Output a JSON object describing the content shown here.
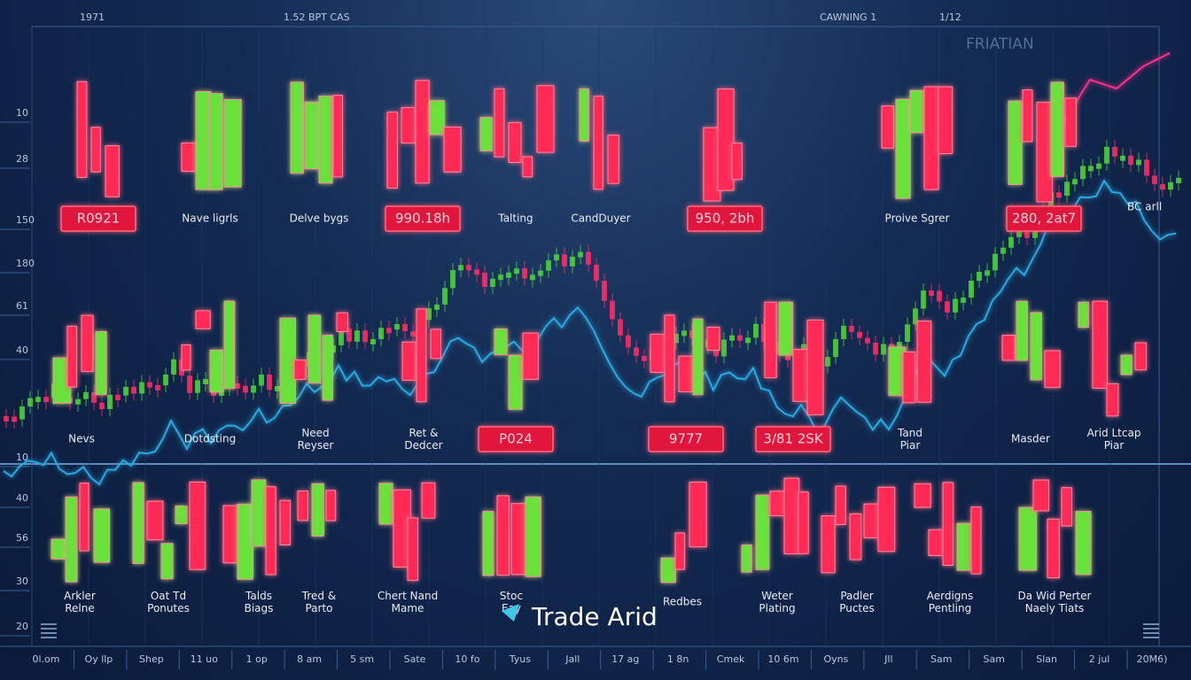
{
  "header": {
    "left": [
      "1971",
      "1.52 BPT CAS"
    ],
    "right": [
      "CAWNING 1",
      "1/12"
    ],
    "corner": "FRIATIAN"
  },
  "left_axis": [
    "10",
    "28",
    "150",
    "180",
    "61",
    "40",
    "10",
    "40",
    "56",
    "30",
    "20"
  ],
  "side_label": "BC arll",
  "rows": [
    {
      "items": [
        {
          "label": "R0921",
          "boxed": true
        },
        {
          "label": "Nave ligrls",
          "boxed": false
        },
        {
          "label": "Delve bygs",
          "boxed": false
        },
        {
          "label": "990.18h",
          "boxed": true
        },
        {
          "label": "Talting",
          "boxed": false
        },
        {
          "label": "CandDuyer",
          "boxed": false
        },
        {
          "label": "950, 2bh",
          "boxed": true
        },
        {
          "label": "Proive Sgrer",
          "boxed": false
        },
        {
          "label": "280, 2at7",
          "boxed": true
        }
      ]
    },
    {
      "items": [
        {
          "label": "Nevs",
          "boxed": false
        },
        {
          "label": "Dotdsting",
          "boxed": false
        },
        {
          "label": "Need Reyser",
          "boxed": false
        },
        {
          "label": "Ret & Dedcer",
          "boxed": false
        },
        {
          "label": "P024",
          "boxed": true
        },
        {
          "label": "9777",
          "boxed": true
        },
        {
          "label": "3/81 2SK",
          "boxed": true
        },
        {
          "label": "Tand Piar",
          "boxed": false
        },
        {
          "label": "Masder",
          "boxed": false
        },
        {
          "label": "Arid Ltcap Piar",
          "boxed": false
        }
      ]
    },
    {
      "items": [
        {
          "label": "Arkler Relne",
          "boxed": false
        },
        {
          "label": "Oat Td Ponutes",
          "boxed": false
        },
        {
          "label": "Talds Biags",
          "boxed": false
        },
        {
          "label": "Tred & Parto",
          "boxed": false
        },
        {
          "label": "Chert Nand Mame",
          "boxed": false
        },
        {
          "label": "Stoc Eay",
          "boxed": false
        },
        {
          "label": "Redbes",
          "boxed": false
        },
        {
          "label": "Weter Plating",
          "boxed": false
        },
        {
          "label": "Padler Puctes",
          "boxed": false
        },
        {
          "label": "Aerdigns Pentling",
          "boxed": false
        },
        {
          "label": "Da Wid Perter Naely Tiats",
          "boxed": false
        }
      ]
    }
  ],
  "brand": "Trade Arid",
  "bottom_axis": [
    "0l.om",
    "Oy llp",
    "Shep",
    "11 uo",
    "1 op",
    "8 am",
    "5 sm",
    "Sate",
    "10 fo",
    "Tyus",
    "Jall",
    "17 ag",
    "1 8n",
    "Cmek",
    "10 6m",
    "Oyns",
    "Jll",
    "Sam",
    "Sam",
    "Slan",
    "2 jul",
    "20M6)"
  ]
}
